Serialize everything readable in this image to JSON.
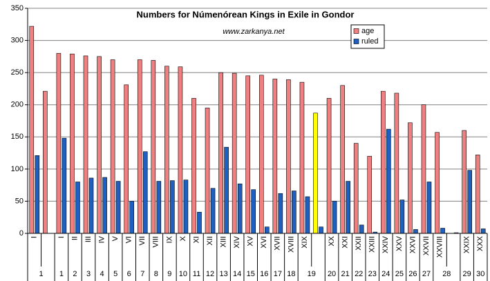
{
  "chart_data": {
    "type": "bar",
    "title": "Numbers for Númenórean Kings in Exile in Gondor",
    "subtitle": "www.zarkanya.net",
    "categories": [
      "I",
      null,
      "I",
      "II",
      "III",
      "IV",
      "V",
      "VI",
      "VII",
      "VIII",
      "IX",
      "X",
      "XI",
      "XII",
      "XIII",
      "XIV",
      "XV",
      "XVI",
      "XVII",
      "XVIII",
      "XIX",
      null,
      "XX",
      "XXI",
      "XXII",
      "XXIII",
      "XXIV",
      "XXV",
      "XXVI",
      "XXVII",
      "XXVIII",
      null,
      "XXIX",
      "XXX"
    ],
    "groups": [
      "1",
      null,
      "1",
      "2",
      "3",
      "4",
      "5",
      "6",
      "7",
      "8",
      "9",
      "10",
      "11",
      "12",
      "13",
      "14",
      "15",
      "16",
      "17",
      "18",
      "19",
      null,
      "20",
      "21",
      "22",
      "23",
      "24",
      "25",
      "26",
      "27",
      "28",
      null,
      "29",
      "30"
    ],
    "series": [
      {
        "name": "age",
        "color": "#f08080",
        "highlight_index": 21,
        "highlight_color": "#ffff00",
        "values": [
          322,
          221,
          280,
          279,
          276,
          275,
          270,
          231,
          270,
          269,
          260,
          259,
          210,
          195,
          250,
          249,
          245,
          246,
          240,
          239,
          235,
          187,
          210,
          230,
          140,
          120,
          221,
          218,
          172,
          200,
          157,
          0,
          160,
          122
        ]
      },
      {
        "name": "ruled",
        "color": "#1f5fbf",
        "values": [
          121,
          0,
          148,
          80,
          86,
          87,
          81,
          50,
          127,
          81,
          82,
          83,
          33,
          70,
          134,
          77,
          68,
          10,
          62,
          66,
          57,
          10,
          50,
          81,
          13,
          2,
          162,
          52,
          6,
          80,
          8,
          1,
          98,
          7
        ]
      }
    ],
    "ylim": [
      0,
      350
    ],
    "yticks": [
      0,
      50,
      100,
      150,
      200,
      250,
      300,
      350
    ],
    "grid": true
  }
}
